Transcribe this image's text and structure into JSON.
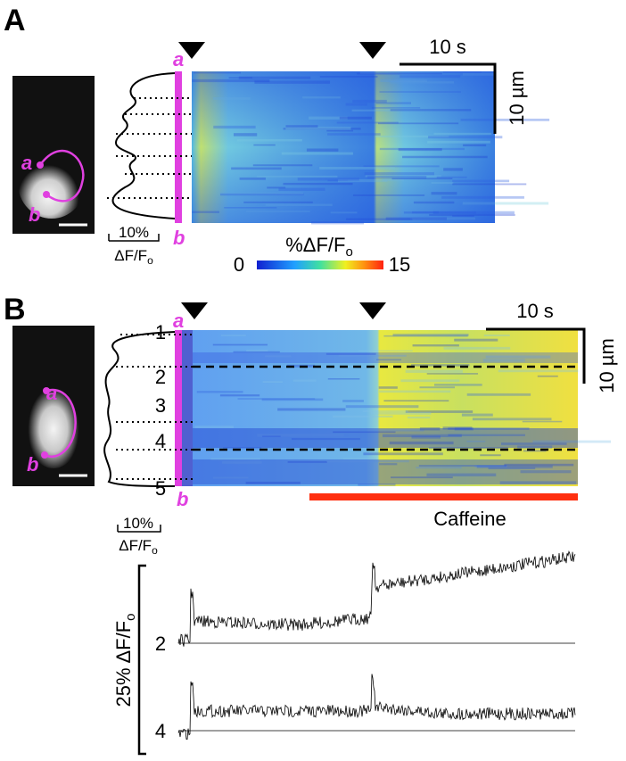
{
  "panel_a": {
    "label": "A",
    "roi_start": "a",
    "roi_end": "b",
    "time_scale": "10 s",
    "space_scale": "10 µm",
    "profile_scale": {
      "value": "10%",
      "unit_main": "ΔF/F",
      "unit_sub": "o"
    },
    "colorbar": {
      "title_main": "%ΔF/F",
      "title_sub": "o",
      "min": "0",
      "max": "15"
    }
  },
  "panel_b": {
    "label": "B",
    "roi_start": "a",
    "roi_end": "b",
    "time_scale": "10 s",
    "space_scale": "10 µm",
    "regions": [
      "1",
      "2",
      "3",
      "4",
      "5"
    ],
    "drug": "Caffeine",
    "profile_scale": {
      "value": "10%",
      "unit_main": "ΔF/F",
      "unit_sub": "o"
    },
    "traces": {
      "scale_main": "25% ΔF/F",
      "scale_sub": "o",
      "labels": [
        "2",
        "4"
      ]
    }
  }
}
